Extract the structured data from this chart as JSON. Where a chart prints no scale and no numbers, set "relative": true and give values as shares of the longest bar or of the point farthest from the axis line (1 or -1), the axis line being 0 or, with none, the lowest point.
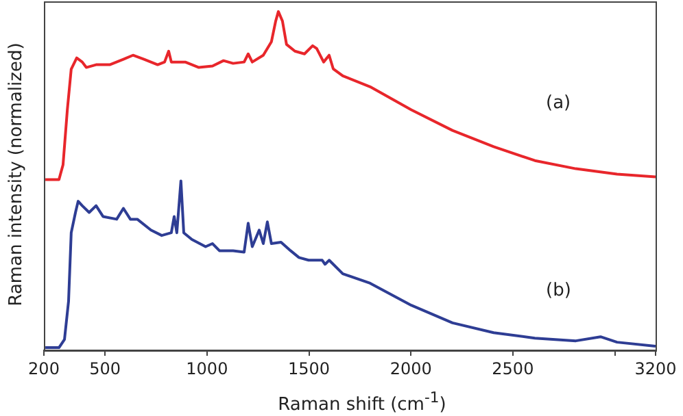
{
  "chart_data": {
    "type": "line",
    "relative": true,
    "xlabel": "Raman shift (cm$^{-1}$)",
    "ylabel": "Raman intensity (normalized)",
    "xlim": [
      200,
      3200
    ],
    "xticks": [
      200,
      500,
      1000,
      1500,
      2000,
      2500,
      {
        "value": 3000,
        "label": null
      },
      3200
    ],
    "grid": false,
    "legend": false,
    "marker": "none",
    "line_style": "solid",
    "series": [
      {
        "color": "#e8262b",
        "x": [
          207,
          274,
          294,
          315,
          334,
          361,
          388,
          408,
          456,
          523,
          590,
          637,
          691,
          758,
          792,
          812,
          825,
          893,
          960,
          1027,
          1081,
          1128,
          1182,
          1202,
          1222,
          1276,
          1316,
          1337,
          1350,
          1370,
          1390,
          1431,
          1478,
          1518,
          1538,
          1572,
          1599,
          1619,
          1666,
          1800,
          2002,
          2204,
          2406,
          2608,
          2809,
          3011,
          3200
        ],
        "values": [
          0.504,
          0.504,
          0.548,
          0.71,
          0.83,
          0.863,
          0.851,
          0.835,
          0.843,
          0.843,
          0.859,
          0.871,
          0.859,
          0.843,
          0.851,
          0.883,
          0.851,
          0.851,
          0.835,
          0.839,
          0.855,
          0.847,
          0.851,
          0.875,
          0.851,
          0.871,
          0.911,
          0.972,
          1.0,
          0.972,
          0.903,
          0.883,
          0.875,
          0.899,
          0.891,
          0.851,
          0.871,
          0.831,
          0.81,
          0.778,
          0.71,
          0.649,
          0.601,
          0.56,
          0.536,
          0.52,
          0.512
        ]
      },
      {
        "color": "#2e3d94",
        "x": [
          207,
          274,
          301,
          321,
          334,
          355,
          368,
          388,
          422,
          456,
          490,
          557,
          590,
          624,
          658,
          725,
          778,
          825,
          839,
          852,
          872,
          886,
          926,
          993,
          1027,
          1061,
          1128,
          1182,
          1202,
          1222,
          1256,
          1276,
          1296,
          1316,
          1363,
          1410,
          1451,
          1498,
          1565,
          1579,
          1599,
          1666,
          1800,
          2002,
          2204,
          2406,
          2608,
          2809,
          2930,
          3011,
          3200
        ],
        "values": [
          0.008,
          0.008,
          0.032,
          0.145,
          0.347,
          0.407,
          0.44,
          0.427,
          0.407,
          0.427,
          0.395,
          0.387,
          0.419,
          0.387,
          0.387,
          0.355,
          0.339,
          0.347,
          0.395,
          0.347,
          0.5,
          0.347,
          0.327,
          0.306,
          0.315,
          0.294,
          0.294,
          0.29,
          0.375,
          0.306,
          0.355,
          0.315,
          0.379,
          0.315,
          0.319,
          0.294,
          0.274,
          0.266,
          0.266,
          0.254,
          0.266,
          0.226,
          0.198,
          0.133,
          0.081,
          0.052,
          0.036,
          0.028,
          0.04,
          0.024,
          0.012
        ]
      }
    ],
    "annotations": [
      "(a)",
      "(b)"
    ]
  }
}
